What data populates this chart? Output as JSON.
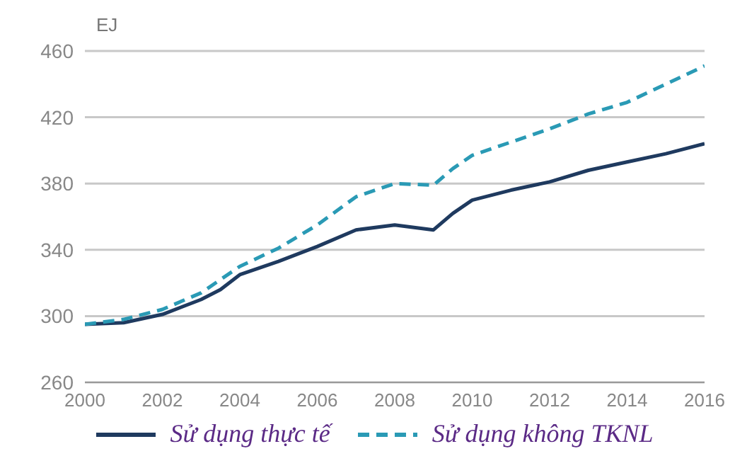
{
  "chart_data": {
    "type": "line",
    "ylabel": "EJ",
    "xlim": [
      2000,
      2016
    ],
    "xticks": [
      2000,
      2002,
      2004,
      2006,
      2008,
      2010,
      2012,
      2014,
      2016
    ],
    "ylim": [
      260,
      460
    ],
    "yticks": [
      260,
      300,
      340,
      380,
      420,
      460
    ],
    "grid": "y",
    "legend": "bottom",
    "marker": "none",
    "series": [
      {
        "name": "Sử dụng thực tế",
        "color": "#1f3a5f",
        "line_style": "solid",
        "x": [
          2000,
          2001,
          2002,
          2003,
          2003.5,
          2004,
          2005,
          2006,
          2007,
          2008,
          2009,
          2009.5,
          2010,
          2011,
          2012,
          2013,
          2014,
          2015,
          2016
        ],
        "values": [
          295,
          296,
          301,
          310,
          316,
          325,
          333,
          342,
          352,
          355,
          352,
          362,
          370,
          376,
          381,
          388,
          393,
          398,
          404
        ]
      },
      {
        "name": "Sử dụng không TKNL",
        "color": "#2a9ab5",
        "line_style": "dashed",
        "x": [
          2000,
          2001,
          2002,
          2003,
          2004,
          2005,
          2006,
          2007,
          2008,
          2009,
          2009.5,
          2010,
          2011,
          2012,
          2013,
          2014,
          2015,
          2016
        ],
        "values": [
          295,
          298,
          304,
          314,
          330,
          341,
          355,
          372,
          380,
          379,
          389,
          397,
          405,
          413,
          422,
          429,
          440,
          451
        ]
      }
    ]
  }
}
